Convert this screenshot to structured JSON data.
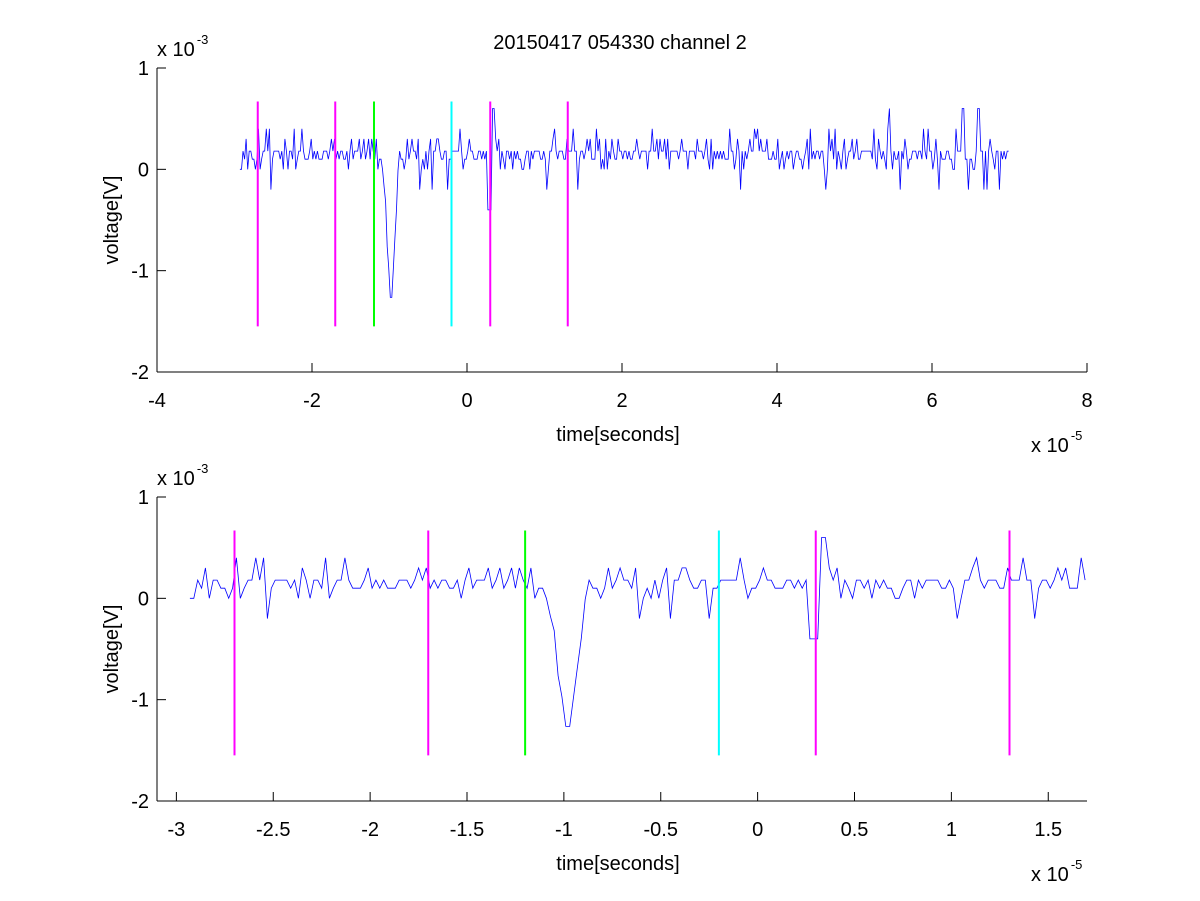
{
  "chart_data": [
    {
      "type": "line",
      "title": "20150417 054330 channel 2",
      "xlabel": "time[seconds]",
      "ylabel": "voltage[V]",
      "x_exponent": {
        "base": "x 10",
        "power": "-5"
      },
      "y_exponent": {
        "base": "x 10",
        "power": "-3"
      },
      "xlim": [
        -4,
        8
      ],
      "ylim": [
        -2,
        1
      ],
      "x_ticks": [
        -4,
        -2,
        0,
        2,
        4,
        6,
        8
      ],
      "x_tick_labels": [
        "-4",
        "-2",
        "0",
        "2",
        "4",
        "6",
        "8"
      ],
      "y_ticks": [
        -2,
        -1,
        0,
        1
      ],
      "y_tick_labels": [
        "-2",
        "-1",
        "0",
        "1"
      ],
      "grid": false,
      "series": [
        {
          "color": "#0000ff",
          "x_range": [
            -2.93,
            7.0
          ],
          "sample_step": 0.02,
          "levels": [
            -0.2,
            0,
            0.2,
            0.4
          ],
          "baseline": 0.18,
          "spike": {
            "x": -0.98,
            "min": -1.4
          },
          "spike2": {
            "x": 0.3,
            "min": -0.4,
            "max": 0.6
          },
          "tail_peaks": [
            {
              "x": 5.45,
              "y": 0.6
            },
            {
              "x": 6.4,
              "y": 0.6
            },
            {
              "x": 6.6,
              "y": 0.6
            }
          ]
        }
      ],
      "markers": [
        {
          "x": -2.7,
          "color": "#ff00ff"
        },
        {
          "x": -1.7,
          "color": "#ff00ff"
        },
        {
          "x": -1.2,
          "color": "#00ff00"
        },
        {
          "x": -0.2,
          "color": "#00ffff"
        },
        {
          "x": 0.3,
          "color": "#ff00ff"
        },
        {
          "x": 1.3,
          "color": "#ff00ff"
        }
      ],
      "marker_range": [
        -1.55,
        0.67
      ]
    },
    {
      "type": "line",
      "xlabel": "time[seconds]",
      "ylabel": "voltage[V]",
      "x_exponent": {
        "base": "x 10",
        "power": "-5"
      },
      "y_exponent": {
        "base": "x 10",
        "power": "-3"
      },
      "xlim": [
        -3.1,
        1.7
      ],
      "ylim": [
        -2,
        1
      ],
      "x_ticks": [
        -3,
        -2.5,
        -2,
        -1.5,
        -1,
        -0.5,
        0,
        0.5,
        1,
        1.5
      ],
      "x_tick_labels": [
        "-3",
        "-2.5",
        "-2",
        "-1.5",
        "-1",
        "-0.5",
        "0",
        "0.5",
        "1",
        "1.5"
      ],
      "y_ticks": [
        -2,
        -1,
        0,
        1
      ],
      "y_tick_labels": [
        "-2",
        "-1",
        "0",
        "1"
      ],
      "grid": false,
      "series": [
        {
          "color": "#0000ff",
          "x_range": [
            -2.93,
            1.7
          ],
          "sample_step": 0.02,
          "levels": [
            -0.2,
            0,
            0.2,
            0.4
          ],
          "baseline": 0.18,
          "spike": {
            "x": -0.98,
            "min": -1.4
          },
          "spike2": {
            "x": 0.3,
            "min": -0.4,
            "max": 0.6
          }
        }
      ],
      "markers": [
        {
          "x": -2.7,
          "color": "#ff00ff"
        },
        {
          "x": -1.7,
          "color": "#ff00ff"
        },
        {
          "x": -1.2,
          "color": "#00ff00"
        },
        {
          "x": -0.2,
          "color": "#00ffff"
        },
        {
          "x": 0.3,
          "color": "#ff00ff"
        },
        {
          "x": 1.3,
          "color": "#ff00ff"
        }
      ],
      "marker_range": [
        -1.55,
        0.67
      ]
    }
  ]
}
